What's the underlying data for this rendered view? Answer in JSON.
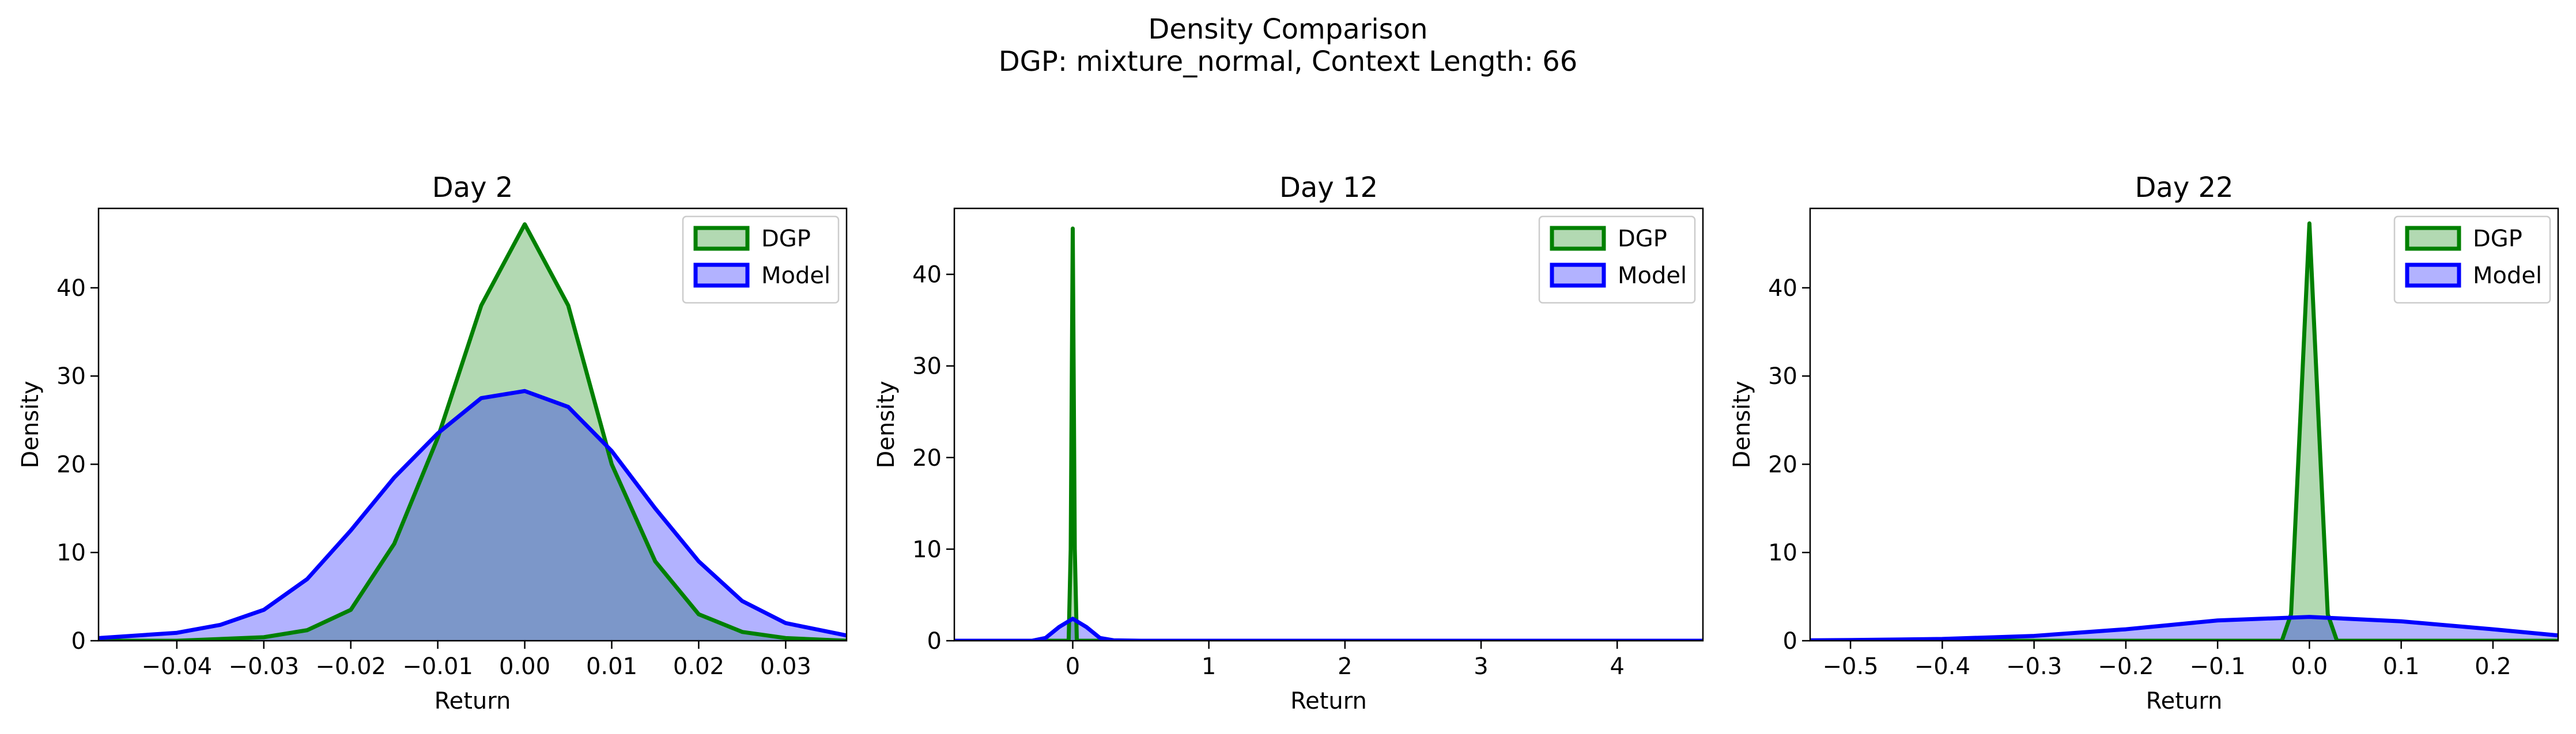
{
  "figure": {
    "title_line1": "Density Comparison",
    "title_line2": "DGP: mixture_normal, Context Length: 66"
  },
  "chart_data": [
    {
      "type": "area",
      "title": "Day 2",
      "xlabel": "Return",
      "ylabel": "Density",
      "xlim": [
        -0.049,
        0.037
      ],
      "ylim": [
        0,
        49
      ],
      "xticks": [
        -0.04,
        -0.03,
        -0.02,
        -0.01,
        0.0,
        0.01,
        0.02,
        0.03
      ],
      "xtick_labels": [
        "−0.04",
        "−0.03",
        "−0.02",
        "−0.01",
        "0.00",
        "0.01",
        "0.02",
        "0.03"
      ],
      "yticks": [
        0,
        10,
        20,
        30,
        40
      ],
      "ytick_labels": [
        "0",
        "10",
        "20",
        "30",
        "40"
      ],
      "legend": "top-right",
      "series": [
        {
          "name": "DGP",
          "color": "#008000",
          "fill": "#b2d8b2",
          "x": [
            -0.049,
            -0.04,
            -0.03,
            -0.025,
            -0.02,
            -0.015,
            -0.01,
            -0.005,
            0.0,
            0.005,
            0.01,
            0.015,
            0.02,
            0.025,
            0.03,
            0.037
          ],
          "y": [
            0.0,
            0.0,
            0.4,
            1.2,
            3.5,
            11.0,
            23.0,
            38.0,
            47.2,
            38.0,
            20.0,
            9.0,
            3.0,
            1.0,
            0.3,
            0.0
          ]
        },
        {
          "name": "Model",
          "color": "#0000ff",
          "fill": "#b2b2ff",
          "x": [
            -0.049,
            -0.04,
            -0.035,
            -0.03,
            -0.025,
            -0.02,
            -0.015,
            -0.01,
            -0.005,
            0.0,
            0.005,
            0.01,
            0.015,
            0.02,
            0.025,
            0.03,
            0.037
          ],
          "y": [
            0.3,
            0.9,
            1.8,
            3.5,
            7.0,
            12.5,
            18.5,
            23.5,
            27.5,
            28.3,
            26.5,
            21.5,
            15.0,
            9.0,
            4.5,
            2.0,
            0.6
          ]
        }
      ]
    },
    {
      "type": "area",
      "title": "Day 12",
      "xlabel": "Return",
      "ylabel": "Density",
      "xlim": [
        -0.87,
        4.63
      ],
      "ylim": [
        0,
        47.2
      ],
      "xticks": [
        0,
        1,
        2,
        3,
        4
      ],
      "xtick_labels": [
        "0",
        "1",
        "2",
        "3",
        "4"
      ],
      "yticks": [
        0,
        10,
        20,
        30,
        40
      ],
      "ytick_labels": [
        "0",
        "10",
        "20",
        "30",
        "40"
      ],
      "legend": "top-right",
      "series": [
        {
          "name": "DGP",
          "color": "#008000",
          "fill": "#b2d8b2",
          "x": [
            -0.87,
            -0.03,
            -0.015,
            0.0,
            0.015,
            0.03,
            4.63
          ],
          "y": [
            0.0,
            0.0,
            10.0,
            45.0,
            10.0,
            0.0,
            0.0
          ]
        },
        {
          "name": "Model",
          "color": "#0000ff",
          "fill": "#b2b2ff",
          "x": [
            -0.87,
            -0.3,
            -0.2,
            -0.1,
            0.0,
            0.1,
            0.2,
            0.3,
            0.5,
            4.63
          ],
          "y": [
            0.0,
            0.0,
            0.3,
            1.5,
            2.4,
            1.5,
            0.3,
            0.05,
            0.0,
            0.0
          ]
        }
      ]
    },
    {
      "type": "area",
      "title": "Day 22",
      "xlabel": "Return",
      "ylabel": "Density",
      "xlim": [
        -0.544,
        0.271
      ],
      "ylim": [
        0,
        49
      ],
      "xticks": [
        -0.5,
        -0.4,
        -0.3,
        -0.2,
        -0.1,
        0.0,
        0.1,
        0.2
      ],
      "xtick_labels": [
        "−0.5",
        "−0.4",
        "−0.3",
        "−0.2",
        "−0.1",
        "0.0",
        "0.1",
        "0.2"
      ],
      "yticks": [
        0,
        10,
        20,
        30,
        40
      ],
      "ytick_labels": [
        "0",
        "10",
        "20",
        "30",
        "40"
      ],
      "legend": "top-right",
      "series": [
        {
          "name": "DGP",
          "color": "#008000",
          "fill": "#b2d8b2",
          "x": [
            -0.544,
            -0.03,
            -0.02,
            -0.01,
            0.0,
            0.01,
            0.02,
            0.03,
            0.271
          ],
          "y": [
            0.0,
            0.0,
            3.0,
            25.0,
            47.3,
            25.0,
            3.0,
            0.0,
            0.0
          ]
        },
        {
          "name": "Model",
          "color": "#0000ff",
          "fill": "#b2b2ff",
          "x": [
            -0.544,
            -0.5,
            -0.4,
            -0.3,
            -0.2,
            -0.1,
            0.0,
            0.1,
            0.2,
            0.271
          ],
          "y": [
            0.05,
            0.08,
            0.2,
            0.55,
            1.3,
            2.3,
            2.7,
            2.2,
            1.3,
            0.6
          ]
        }
      ]
    }
  ]
}
